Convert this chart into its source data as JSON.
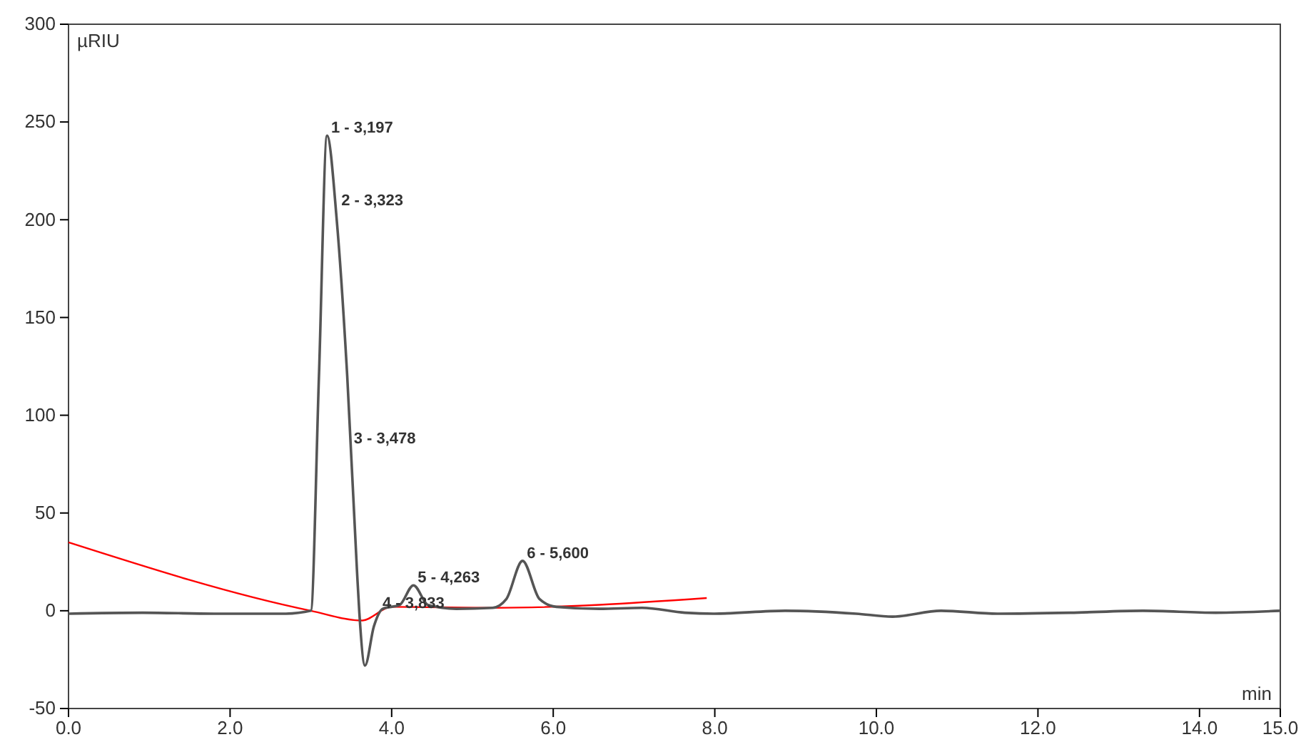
{
  "chart_data": {
    "type": "line",
    "xlabel": "min",
    "ylabel": "µRIU",
    "xlim": [
      0,
      15
    ],
    "ylim": [
      -50,
      300
    ],
    "xticks": [
      {
        "value": 0,
        "label": "0.0"
      },
      {
        "value": 2,
        "label": "2.0"
      },
      {
        "value": 4,
        "label": "4.0"
      },
      {
        "value": 6,
        "label": "6.0"
      },
      {
        "value": 8,
        "label": "8.0"
      },
      {
        "value": 10,
        "label": "10.0"
      },
      {
        "value": 12,
        "label": "12.0"
      },
      {
        "value": 14,
        "label": "14.0"
      },
      {
        "value": 15,
        "label": "15.0"
      }
    ],
    "yticks": [
      -50,
      0,
      50,
      100,
      150,
      200,
      250,
      300
    ],
    "grid": false,
    "series": [
      {
        "color": "#555555",
        "x": [
          0,
          0.92,
          1.8,
          2.69,
          3.0,
          3.1,
          3.2,
          3.32,
          3.45,
          3.57,
          3.6,
          3.67,
          3.78,
          3.89,
          4.1,
          4.27,
          4.45,
          4.8,
          5.25,
          5.42,
          5.62,
          5.83,
          6.04,
          6.57,
          7.1,
          7.63,
          7.99,
          8.87,
          9.75,
          10.2,
          10.8,
          11.5,
          12.4,
          13.3,
          14.2,
          15
        ],
        "values": [
          -1.5,
          -1,
          -1.5,
          -1.5,
          0,
          120,
          243,
          200,
          120,
          21,
          -1,
          -28,
          -8,
          1,
          3,
          13,
          3,
          1,
          1.5,
          6,
          25.5,
          6,
          2,
          1,
          1.5,
          -1,
          -1.5,
          0,
          -1.5,
          -3,
          0,
          -1.5,
          -1,
          0,
          -1,
          0
        ]
      },
      {
        "color": "#ff0000",
        "x": [
          0,
          3.0,
          3.63,
          4.0,
          5.25,
          7.9
        ],
        "values": [
          35,
          0,
          -5,
          2,
          1.5,
          6.5
        ]
      }
    ],
    "annotations": [
      {
        "text": "1 - 3,197",
        "x": 3.197,
        "y": 243
      },
      {
        "text": "2 - 3,323",
        "x": 3.323,
        "y": 206
      },
      {
        "text": "3 - 3,478",
        "x": 3.478,
        "y": 84
      },
      {
        "text": "4 - 3,833",
        "x": 3.833,
        "y": 0
      },
      {
        "text": "5 - 4,263",
        "x": 4.27,
        "y": 13
      },
      {
        "text": "6 - 5,600",
        "x": 5.62,
        "y": 25.5
      }
    ]
  }
}
